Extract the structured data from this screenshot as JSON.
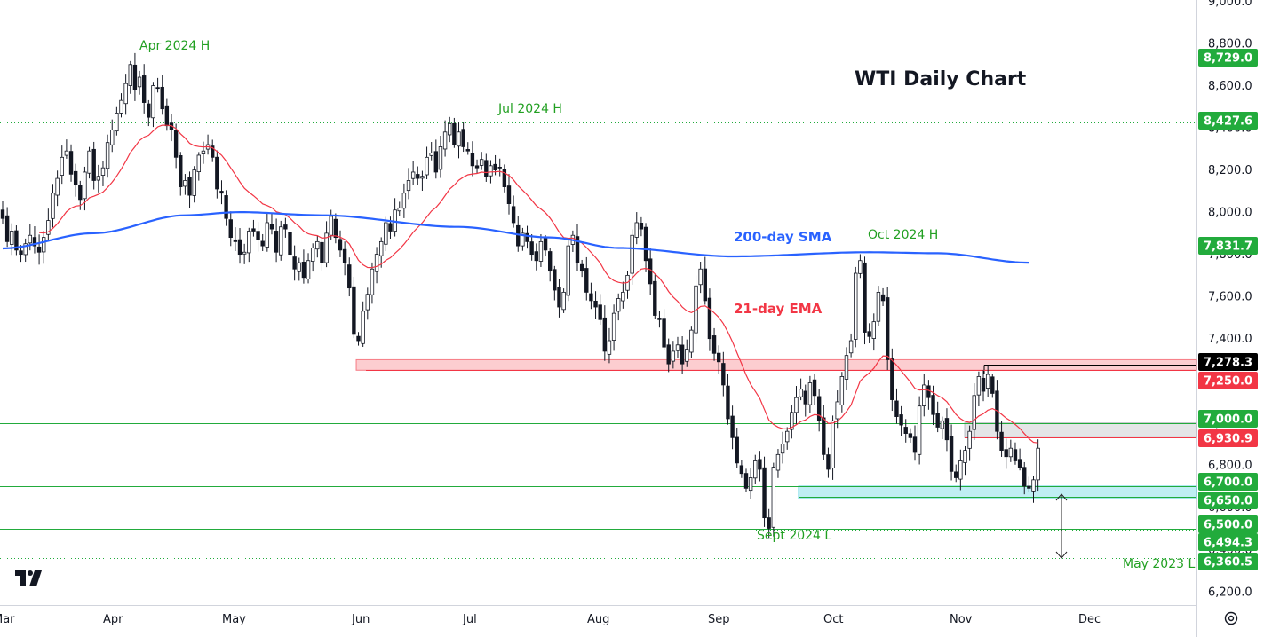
{
  "chart_data": {
    "type": "candlestick",
    "title": "WTI Daily Chart",
    "x_labels": [
      "Mar",
      "Apr",
      "May",
      "Jun",
      "Jul",
      "Aug",
      "Sep",
      "Oct",
      "Nov",
      "Dec"
    ],
    "y_ticks": [
      "9,000.0",
      "8,800.0",
      "8,600.0",
      "8,400.0",
      "8,200.0",
      "8,000.0",
      "7,800.0",
      "7,600.0",
      "7,400.0",
      "7,200.0",
      "7,000.0",
      "6,800.0",
      "6,600.0",
      "6,400.0",
      "6,200.0"
    ],
    "ylim": [
      6090,
      9000
    ],
    "indicators": [
      {
        "name": "200-day SMA",
        "color": "#2962ff"
      },
      {
        "name": "21-day EMA",
        "color": "#f23645"
      }
    ],
    "annotations": [
      {
        "text": "Apr 2024 H",
        "date": "2024-04-12",
        "value": 8729.0
      },
      {
        "text": "Jul 2024 H",
        "date": "2024-07-05",
        "value": 8427.6
      },
      {
        "text": "Oct 2024 H",
        "date": "2024-10-08",
        "value": 7831.7
      },
      {
        "text": "Sept 2024 L",
        "date": "2024-09-10",
        "value": 6494.3
      },
      {
        "text": "May 2023 L",
        "date": "2024-12-10",
        "value": 6360.5
      }
    ],
    "levels": [
      {
        "label": "8,729.0",
        "value": 8729.0,
        "color": "#22ab3c"
      },
      {
        "label": "8,427.6",
        "value": 8427.6,
        "color": "#22ab3c"
      },
      {
        "label": "7,831.7",
        "value": 7831.7,
        "color": "#22ab3c"
      },
      {
        "label": "7,278.3",
        "value": 7278.3,
        "color": "#000000"
      },
      {
        "label": "7,250.0",
        "value": 7250.0,
        "color": "#f23645"
      },
      {
        "label": "7,000.0",
        "value": 7000.0,
        "color": "#22ab3c"
      },
      {
        "label": "6,930.9",
        "value": 6930.9,
        "color": "#f23645"
      },
      {
        "label": "6,700.0",
        "value": 6700.0,
        "color": "#22ab3c"
      },
      {
        "label": "6,650.0",
        "value": 6650.0,
        "color": "#22ab3c"
      },
      {
        "label": "6,500.0",
        "value": 6500.0,
        "color": "#22ab3c"
      },
      {
        "label": "6,494.3",
        "value": 6494.3,
        "color": "#22ab3c"
      },
      {
        "label": "6,360.5",
        "value": 6360.5,
        "color": "#22ab3c"
      }
    ],
    "zones": [
      {
        "from": 7250,
        "to": 7300,
        "color": "#f23645"
      },
      {
        "from": 6930,
        "to": 7000,
        "color": "#9598a1"
      },
      {
        "from": 6640,
        "to": 6700,
        "color": "#00bcd4"
      }
    ],
    "candles_close": [
      7970,
      7860,
      7910,
      7820,
      7800,
      7850,
      7890,
      7840,
      7810,
      7880,
      7960,
      8090,
      8160,
      8260,
      8290,
      8180,
      8130,
      8060,
      8190,
      8290,
      8150,
      8170,
      8210,
      8330,
      8390,
      8470,
      8530,
      8610,
      8700,
      8580,
      8640,
      8520,
      8450,
      8600,
      8590,
      8490,
      8410,
      8390,
      8260,
      8120,
      8150,
      8080,
      8200,
      8270,
      8290,
      8320,
      8260,
      8110,
      8090,
      7970,
      7880,
      7860,
      7800,
      7810,
      7910,
      7910,
      7870,
      7840,
      7950,
      7920,
      7810,
      7930,
      7920,
      7800,
      7730,
      7760,
      7690,
      7770,
      7830,
      7860,
      7760,
      7900,
      7980,
      7880,
      7820,
      7760,
      7640,
      7420,
      7390,
      7530,
      7610,
      7730,
      7800,
      7860,
      7950,
      7910,
      8010,
      8020,
      8090,
      8150,
      8190,
      8160,
      8170,
      8260,
      8280,
      8190,
      8310,
      8380,
      8420,
      8320,
      8380,
      8310,
      8290,
      8220,
      8210,
      8250,
      8170,
      8220,
      8200,
      8210,
      8120,
      8040,
      7950,
      7840,
      7900,
      7860,
      7800,
      7770,
      7860,
      7820,
      7720,
      7630,
      7550,
      7620,
      7840,
      7890,
      7760,
      7720,
      7620,
      7580,
      7550,
      7490,
      7340,
      7390,
      7520,
      7590,
      7620,
      7700,
      7890,
      7950,
      7920,
      7770,
      7660,
      7510,
      7490,
      7360,
      7280,
      7340,
      7370,
      7280,
      7350,
      7440,
      7650,
      7730,
      7580,
      7400,
      7330,
      7290,
      7180,
      7020,
      6930,
      6810,
      6760,
      6690,
      6740,
      6820,
      6780,
      6550,
      6500,
      6790,
      6850,
      6900,
      6960,
      7050,
      7120,
      7160,
      7090,
      7190,
      7130,
      7010,
      6850,
      6780,
      7010,
      7100,
      7220,
      7320,
      7390,
      7710,
      7770,
      7430,
      7410,
      7480,
      7620,
      7580,
      7300,
      7110,
      7030,
      6990,
      6950,
      6930,
      6860,
      7080,
      7180,
      7120,
      7040,
      6980,
      7010,
      6920,
      6770,
      6740,
      6820,
      6870,
      6960,
      7130,
      7220,
      7150,
      7230,
      7140,
      6960,
      6870,
      6840,
      6880,
      6820,
      6790,
      6700,
      6690,
      6730,
      6880
    ]
  }
}
